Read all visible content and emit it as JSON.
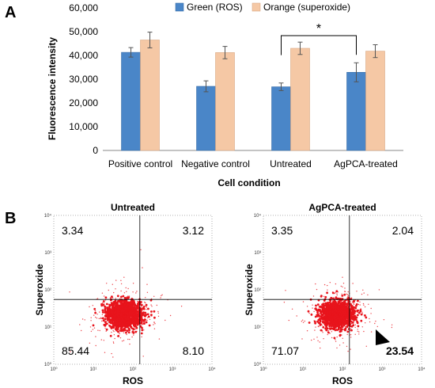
{
  "panels": {
    "a_label": "A",
    "b_label": "B"
  },
  "chart_data": [
    {
      "type": "bar",
      "panel": "A",
      "categories": [
        "Positive control",
        "Negative control",
        "Untreated",
        "AgPCA-treated"
      ],
      "series": [
        {
          "name": "Green (ROS)",
          "color": "#4a86c8",
          "values": [
            41300,
            27000,
            26800,
            32900
          ],
          "errors": [
            2000,
            2300,
            1600,
            4000
          ]
        },
        {
          "name": "Orange (superoxide)",
          "color": "#f5c8a5",
          "values": [
            46500,
            41200,
            43000,
            41800
          ],
          "errors": [
            3300,
            2600,
            2600,
            2700
          ]
        }
      ],
      "ylim": [
        0,
        60000
      ],
      "yticks": [
        0,
        10000,
        20000,
        30000,
        40000,
        50000,
        60000
      ],
      "ytick_labels": [
        "0",
        "10,000",
        "20,000",
        "30,000",
        "40,000",
        "50,000",
        "60,000"
      ],
      "xlabel": "Cell condition",
      "ylabel": "Fluorescence intensity",
      "legend_position": "top",
      "significance": {
        "from": "Untreated",
        "to": "AgPCA-treated",
        "label": "*"
      }
    },
    {
      "type": "scatter",
      "panel": "B-left",
      "title": "Untreated",
      "xlabel": "ROS",
      "ylabel": "Superoxide",
      "scale": "log",
      "xlim": [
        1,
        10000
      ],
      "ylim": [
        1,
        10000
      ],
      "tick_labels": [
        "10⁰",
        "10¹",
        "10²",
        "10³",
        "10⁴"
      ],
      "gate": {
        "x": 150,
        "y": 55
      },
      "quadrants": {
        "upper_left": "3.34",
        "upper_right": "3.12",
        "lower_left": "85.44",
        "lower_right": "8.10"
      },
      "color": "#e8141c"
    },
    {
      "type": "scatter",
      "panel": "B-right",
      "title": "AgPCA-treated",
      "xlabel": "ROS",
      "ylabel": "Superoxide",
      "scale": "log",
      "xlim": [
        1,
        10000
      ],
      "ylim": [
        1,
        10000
      ],
      "tick_labels": [
        "10⁰",
        "10¹",
        "10²",
        "10³",
        "10⁴"
      ],
      "gate": {
        "x": 150,
        "y": 55
      },
      "quadrants": {
        "upper_left": "3.35",
        "upper_right": "2.04",
        "lower_left": "71.07",
        "lower_right": "23.54"
      },
      "highlight": "lower_right",
      "color": "#e8141c"
    }
  ]
}
